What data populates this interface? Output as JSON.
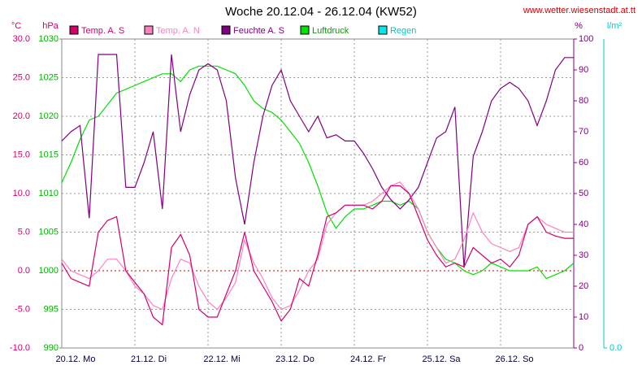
{
  "chart_data": {
    "type": "line",
    "title": "Woche 20.12.04 - 26.12.04 (KW52)",
    "source": "www.wetter.wiesenstadt.at.tt",
    "y_unit": "°C",
    "y3_unit": "hPa",
    "y2_unit": "%",
    "y4_unit": "l/m²",
    "x": [
      0,
      3,
      6,
      9,
      12,
      15,
      18,
      21,
      24,
      27,
      30,
      33,
      36,
      39,
      42,
      45,
      48,
      51,
      54,
      57,
      60,
      63,
      66,
      69,
      72,
      75,
      78,
      81,
      84,
      87,
      90,
      93,
      96,
      99,
      102,
      105,
      108,
      111,
      114,
      117,
      120,
      123,
      126,
      129,
      132,
      135,
      138,
      141,
      144,
      147,
      150,
      153,
      156,
      159,
      162,
      165,
      168
    ],
    "xlim": [
      0,
      168
    ],
    "xticks": [
      {
        "value": 0,
        "label": "20.12. Mo"
      },
      {
        "value": 24,
        "label": "21.12. Di"
      },
      {
        "value": 48,
        "label": "22.12. Mi"
      },
      {
        "value": 72,
        "label": "23.12. Do"
      },
      {
        "value": 96,
        "label": "24.12. Fr"
      },
      {
        "value": 120,
        "label": "25.12. Sa"
      },
      {
        "value": 144,
        "label": "26.12. So"
      }
    ],
    "ylim": [
      -10,
      30
    ],
    "yticks": [
      {
        "value": 30,
        "label": "30.0"
      },
      {
        "value": 25,
        "label": "25.0"
      },
      {
        "value": 20,
        "label": "20.0"
      },
      {
        "value": 15,
        "label": "15.0"
      },
      {
        "value": 10,
        "label": "10.0"
      },
      {
        "value": 5,
        "label": "5.0"
      },
      {
        "value": 0,
        "label": "0.0"
      },
      {
        "value": -5,
        "label": "-5.0"
      },
      {
        "value": -10,
        "label": "-10.0"
      }
    ],
    "y3lim": [
      990,
      1030
    ],
    "y3ticks": [
      1030,
      1025,
      1020,
      1015,
      1010,
      1005,
      1000,
      995,
      990
    ],
    "y2lim": [
      0,
      100
    ],
    "y2ticks": [
      100,
      90,
      80,
      70,
      60,
      50,
      40,
      30,
      20,
      10,
      0
    ],
    "y4ticks": [
      {
        "value": 0,
        "label": "0.0"
      }
    ],
    "grid": true,
    "series": [
      {
        "name": "Temp. A. S",
        "color": "#d4006a",
        "axis": "y",
        "values": [
          1,
          -1,
          -1.5,
          -2,
          5,
          6.5,
          7,
          0,
          -1.5,
          -3,
          -6,
          -7,
          3,
          4.7,
          2,
          -5,
          -6,
          -6,
          -3,
          0,
          5,
          0,
          -2,
          -4,
          -6.5,
          -5,
          -1,
          -2,
          2,
          7,
          7.5,
          8.5,
          8.5,
          8.5,
          8,
          9,
          11,
          11,
          10,
          7,
          4,
          2,
          0.5,
          1,
          0.5,
          3,
          2,
          1,
          1.5,
          0.5,
          2,
          6,
          7,
          5,
          4.5,
          4.2,
          4.2
        ]
      },
      {
        "name": "Temp. A. N",
        "color": "#ff80c0",
        "axis": "y",
        "values": [
          1.5,
          0,
          -0.5,
          -1,
          0,
          1.5,
          1.5,
          0,
          -2,
          -3,
          -4.5,
          -5,
          -1,
          1.5,
          1,
          -2,
          -4,
          -5,
          -3.5,
          -1.5,
          4,
          1,
          -1,
          -3.5,
          -5,
          -4.5,
          -2.5,
          0,
          1.5,
          6,
          7.5,
          8.5,
          8.5,
          8.5,
          9,
          10,
          11,
          11.5,
          10,
          8,
          5,
          3,
          1,
          1.5,
          4,
          7.5,
          5,
          3.5,
          3,
          2.5,
          3,
          6,
          7,
          6,
          5.5,
          5,
          5
        ]
      },
      {
        "name": "Feuchte A. S",
        "color": "#800080",
        "axis": "y2",
        "values": [
          67,
          70,
          72,
          42,
          95,
          95,
          95,
          52,
          52,
          60,
          70,
          45,
          95,
          70,
          82,
          90,
          92,
          90,
          80,
          55,
          40,
          60,
          75,
          85,
          90,
          80,
          75,
          70,
          75,
          68,
          69,
          67,
          67,
          63,
          58,
          52,
          48,
          45,
          48,
          52,
          60,
          68,
          70,
          78,
          26,
          62,
          70,
          80,
          84,
          86,
          84,
          80,
          72,
          80,
          90,
          94,
          94
        ]
      },
      {
        "name": "Luftdruck",
        "color": "#00e000",
        "axis": "y3",
        "values": [
          1011.4,
          1014,
          1017,
          1019.5,
          1020,
          1021.5,
          1023,
          1023.5,
          1024,
          1024.5,
          1025,
          1025.5,
          1025.5,
          1024.5,
          1026,
          1026.5,
          1026.5,
          1026.5,
          1026,
          1025.5,
          1024,
          1022,
          1021,
          1020.5,
          1019.5,
          1018,
          1016.5,
          1014,
          1011,
          1007.5,
          1005.5,
          1007,
          1008,
          1008,
          1008.5,
          1009,
          1009,
          1008.5,
          1009,
          1008,
          1005,
          1003,
          1001.5,
          1001,
          1000,
          999.5,
          1000,
          1001,
          1000.5,
          1000,
          1000,
          1000,
          1000.5,
          999,
          999.5,
          1000,
          1001
        ]
      },
      {
        "name": "Regen",
        "color": "#00e8e8",
        "axis": "y4"
      }
    ]
  }
}
